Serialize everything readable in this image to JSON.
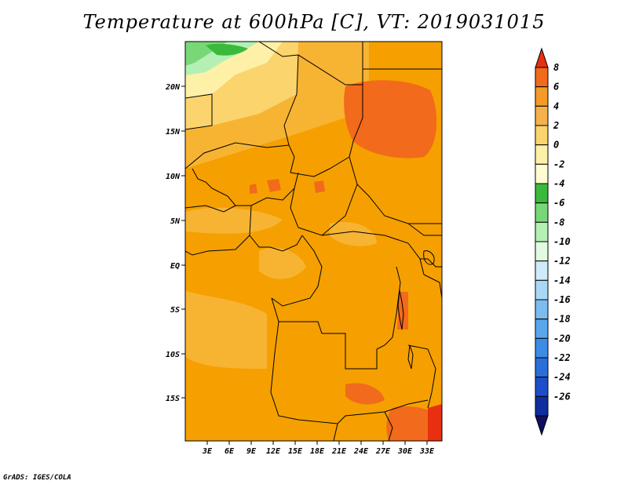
{
  "title": "Temperature at 600hPa [C], VT: 2019031015",
  "credit": "GrADS: IGES/COLA",
  "map": {
    "lat_labels": [
      "20N",
      "15N",
      "10N",
      "5N",
      "EQ",
      "5S",
      "10S",
      "15S"
    ],
    "lon_labels": [
      "3E",
      "6E",
      "9E",
      "12E",
      "15E",
      "18E",
      "21E",
      "24E",
      "27E",
      "30E",
      "33E"
    ],
    "base_color": "#f5a000"
  },
  "colorbar": {
    "labels": [
      "8",
      "6",
      "4",
      "2",
      "0",
      "-2",
      "-4",
      "-6",
      "-8",
      "-10",
      "-12",
      "-14",
      "-16",
      "-18",
      "-20",
      "-22",
      "-24",
      "-26"
    ],
    "colors": [
      "#e83010",
      "#f26a1c",
      "#f59a26",
      "#f5b24a",
      "#fbd46e",
      "#fff0a8",
      "#fffcd2",
      "#3aba3a",
      "#78d878",
      "#b4f0b4",
      "#e2fae2",
      "#cfeaf8",
      "#a8d8f4",
      "#7cbcf0",
      "#5aa6ec",
      "#3c8ce6",
      "#2a6edc",
      "#1c4ecc",
      "#0e2e9e",
      "#101060"
    ]
  }
}
